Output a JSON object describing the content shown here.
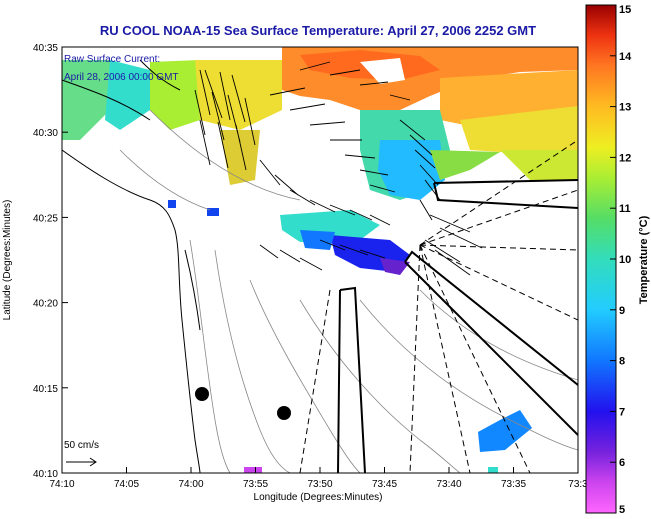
{
  "title": "RU COOL  NOAA-15  Sea Surface Temperature:  April 27, 2006 2252 GMT",
  "annotation": {
    "line1": "Raw Surface Current:",
    "line2": "April 28, 2006 00:00 GMT"
  },
  "axes": {
    "xlabel": "Longitude (Degrees:Minutes)",
    "ylabel": "Latitude (Degrees:Minutes)",
    "x_ticks": [
      "74:10",
      "74:05",
      "74:00",
      "73:55",
      "73:50",
      "73:45",
      "73:40",
      "73:35",
      "73:3"
    ],
    "y_ticks": [
      "40:35",
      "40:30",
      "40:25",
      "40:20",
      "40:15",
      "40:10"
    ]
  },
  "colorbar": {
    "label": "Temperature (°C)",
    "ticks": [
      "15",
      "14",
      "13",
      "12",
      "11",
      "10",
      "9",
      "8",
      "7",
      "6",
      "5"
    ],
    "min": 5,
    "max": 15
  },
  "scale_arrow": {
    "label": "50 cm/s"
  }
}
